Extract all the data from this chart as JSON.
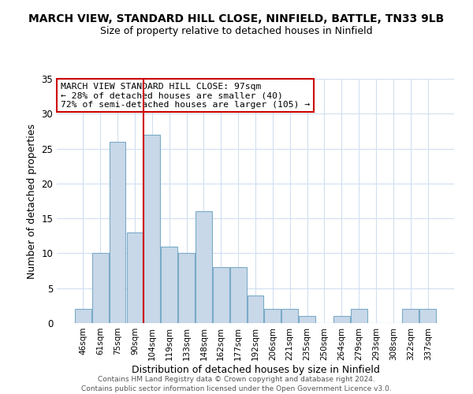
{
  "title": "MARCH VIEW, STANDARD HILL CLOSE, NINFIELD, BATTLE, TN33 9LB",
  "subtitle": "Size of property relative to detached houses in Ninfield",
  "xlabel": "Distribution of detached houses by size in Ninfield",
  "ylabel": "Number of detached properties",
  "footer_line1": "Contains HM Land Registry data © Crown copyright and database right 2024.",
  "footer_line2": "Contains public sector information licensed under the Open Government Licence v3.0.",
  "bar_labels": [
    "46sqm",
    "61sqm",
    "75sqm",
    "90sqm",
    "104sqm",
    "119sqm",
    "133sqm",
    "148sqm",
    "162sqm",
    "177sqm",
    "192sqm",
    "206sqm",
    "221sqm",
    "235sqm",
    "250sqm",
    "264sqm",
    "279sqm",
    "293sqm",
    "308sqm",
    "322sqm",
    "337sqm"
  ],
  "bar_values": [
    2,
    10,
    26,
    13,
    27,
    11,
    10,
    16,
    8,
    8,
    4,
    2,
    2,
    1,
    0,
    1,
    2,
    0,
    0,
    2,
    2
  ],
  "bar_color": "#c8d8e8",
  "bar_edgecolor": "#7aaac8",
  "vline_x": 3.5,
  "vline_color": "#cc0000",
  "annotation_title": "MARCH VIEW STANDARD HILL CLOSE: 97sqm",
  "annotation_line2": "← 28% of detached houses are smaller (40)",
  "annotation_line3": "72% of semi-detached houses are larger (105) →",
  "annotation_box_edgecolor": "#cc0000",
  "ylim": [
    0,
    35
  ],
  "yticks": [
    0,
    5,
    10,
    15,
    20,
    25,
    30,
    35
  ],
  "background_color": "#ffffff",
  "grid_color": "#d0dff0"
}
